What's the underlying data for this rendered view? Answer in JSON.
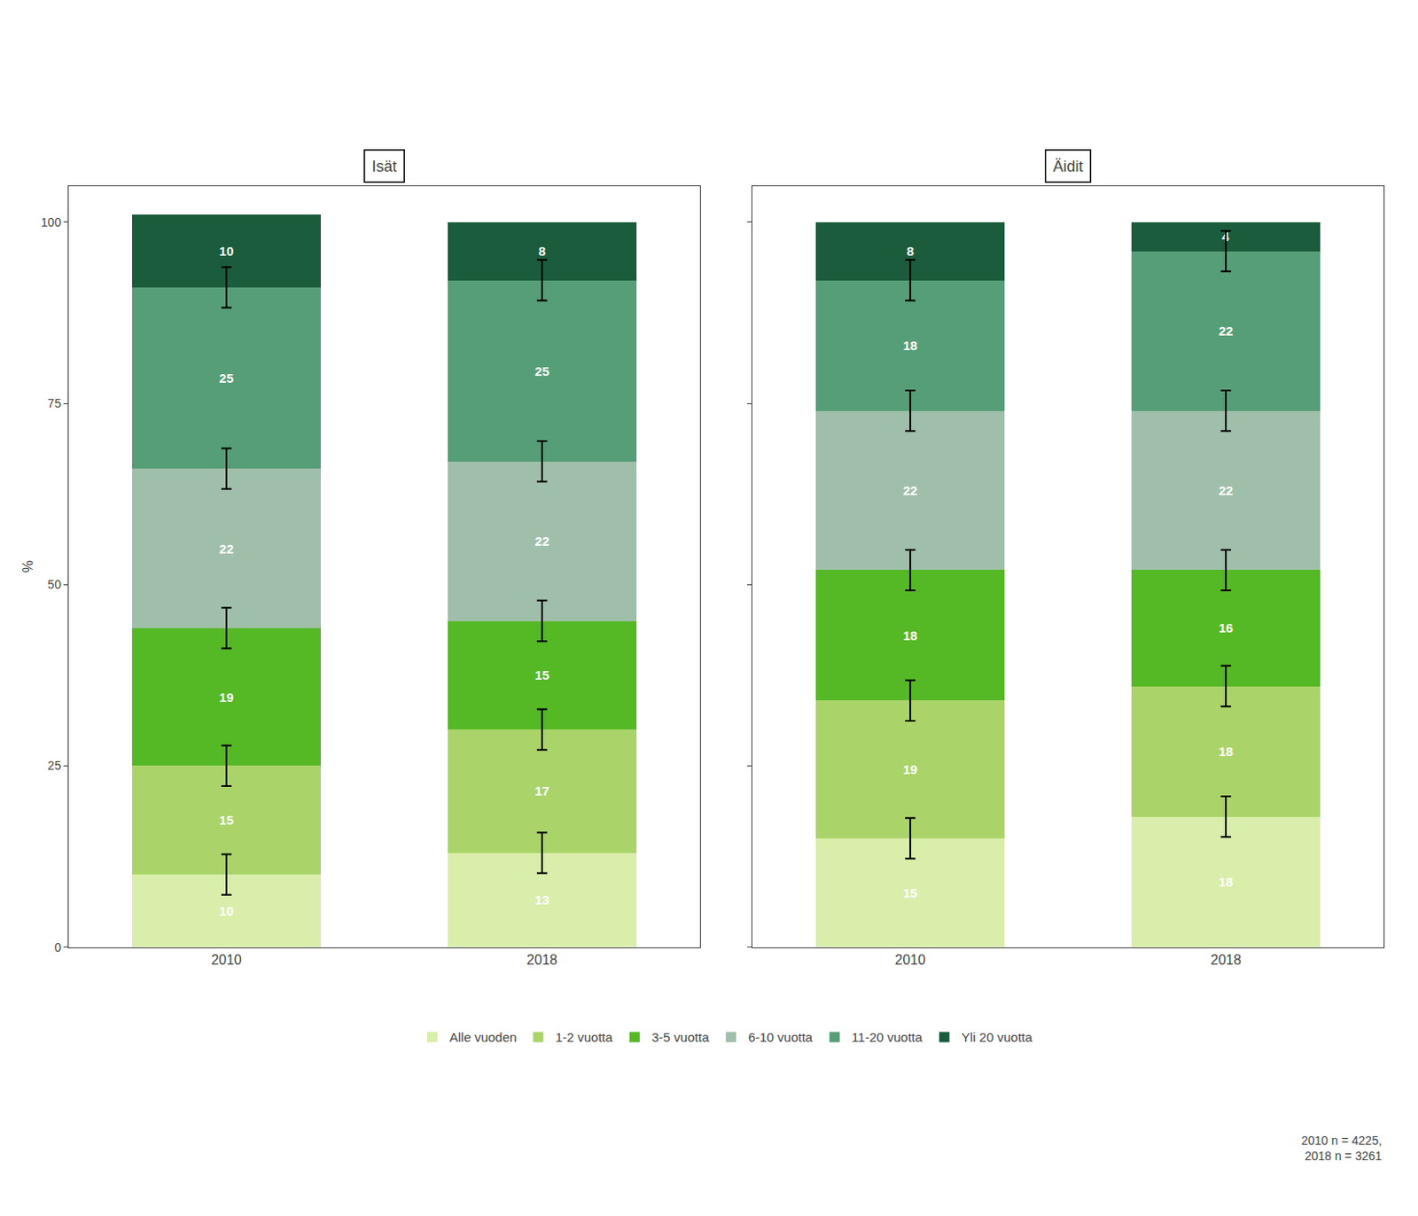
{
  "chart_data": [
    {
      "type": "bar",
      "title": "Isät",
      "stacked": true,
      "data_labels": true,
      "grid": false,
      "ylabel": "%",
      "categories": [
        "2010",
        "2018"
      ],
      "series": [
        {
          "name": "Alle vuoden",
          "color": "#d9eeaa",
          "values": [
            10,
            13
          ]
        },
        {
          "name": "1-2 vuotta",
          "color": "#aad46a",
          "values": [
            15,
            17
          ]
        },
        {
          "name": "3-5 vuotta",
          "color": "#55b825",
          "values": [
            19,
            15
          ]
        },
        {
          "name": "6-10 vuotta",
          "color": "#a0bfaa",
          "values": [
            22,
            22
          ]
        },
        {
          "name": "11-20 vuotta",
          "color": "#569e78",
          "values": [
            25,
            25
          ]
        },
        {
          "name": "Yli 20 vuotta",
          "color": "#1a5c3c",
          "values": [
            10,
            8
          ]
        }
      ],
      "error_bars": {
        "positions": [
          [
            10,
            25,
            44,
            66,
            91
          ],
          [
            13,
            30,
            45,
            67,
            92
          ]
        ],
        "error": 2.8
      },
      "ylim": [
        0,
        105
      ],
      "yticks": [
        0,
        25,
        50,
        75,
        100
      ],
      "legend": "bottom"
    },
    {
      "type": "bar",
      "title": "Äidit",
      "stacked": true,
      "data_labels": true,
      "grid": false,
      "tick_labels": "x",
      "categories": [
        "2010",
        "2018"
      ],
      "series": [
        {
          "name": "Alle vuoden",
          "color": "#d9eeaa",
          "values": [
            15,
            18
          ]
        },
        {
          "name": "1-2 vuotta",
          "color": "#aad46a",
          "values": [
            19,
            18
          ]
        },
        {
          "name": "3-5 vuotta",
          "color": "#55b825",
          "values": [
            18,
            16
          ]
        },
        {
          "name": "6-10 vuotta",
          "color": "#a0bfaa",
          "values": [
            22,
            22
          ]
        },
        {
          "name": "11-20 vuotta",
          "color": "#569e78",
          "values": [
            18,
            22
          ]
        },
        {
          "name": "Yli 20 vuotta",
          "color": "#1a5c3c",
          "values": [
            8,
            4
          ]
        }
      ],
      "error_bars": {
        "positions": [
          [
            15,
            34,
            52,
            74,
            92
          ],
          [
            18,
            36,
            52,
            74,
            96
          ]
        ],
        "error": 2.8
      },
      "ylim": [
        0,
        105
      ],
      "yticks": [
        0,
        25,
        50,
        75,
        100
      ],
      "annotations": [
        "2010 n = 4225,\n2018 n = 3261"
      ]
    }
  ]
}
